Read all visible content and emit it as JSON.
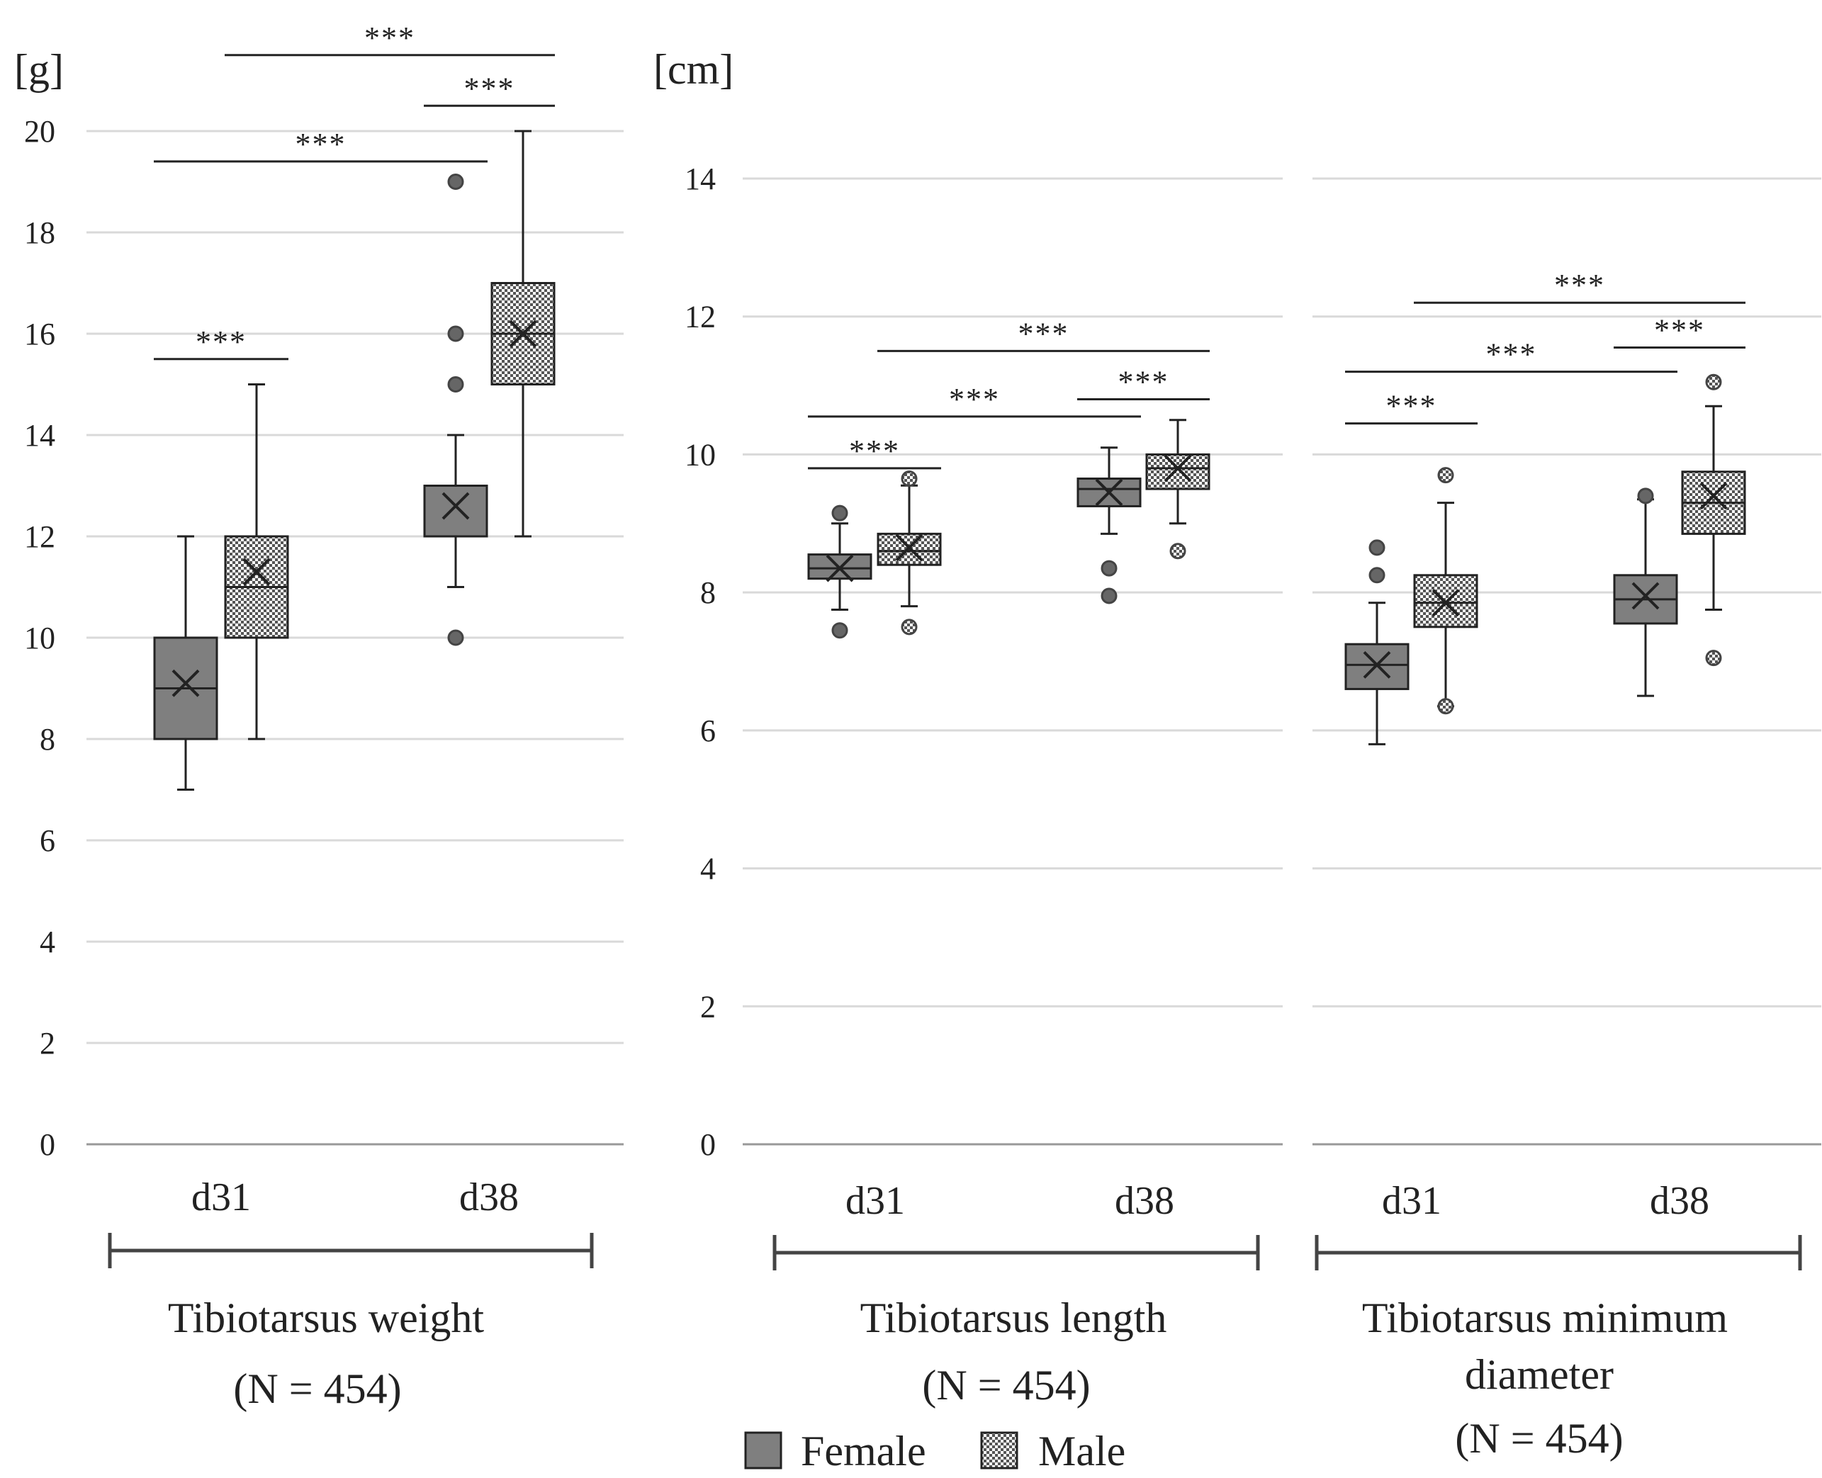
{
  "figure": {
    "legend": {
      "female_label": "Female",
      "male_label": "Male"
    },
    "colors": {
      "female_fill": "#7f7f7f",
      "male_pattern_dark": "#555555",
      "male_pattern_light": "#ffffff",
      "gridline": "#d9d9d9",
      "axis": "#999999",
      "ink": "#222222"
    }
  },
  "chart_data": [
    {
      "id": "weight",
      "type": "box",
      "unit_label": "[g]",
      "group_label_lines": [
        "Tibiotarsus weight",
        "(N = 454)"
      ],
      "ylim": [
        0,
        20
      ],
      "yticks": [
        0,
        2,
        4,
        6,
        8,
        10,
        12,
        14,
        16,
        18,
        20
      ],
      "categories": [
        "d31",
        "d38"
      ],
      "series": [
        {
          "name": "Female",
          "boxes": [
            {
              "category": "d31",
              "whisker_low": 7,
              "q1": 8,
              "median": 9,
              "q3": 10,
              "whisker_high": 12,
              "mean": 9.1,
              "outliers": []
            },
            {
              "category": "d38",
              "whisker_low": 11,
              "q1": 12,
              "median": 12,
              "q3": 13,
              "whisker_high": 14,
              "mean": 12.6,
              "outliers": [
                10,
                15,
                16,
                19
              ]
            }
          ]
        },
        {
          "name": "Male",
          "boxes": [
            {
              "category": "d31",
              "whisker_low": 8,
              "q1": 10,
              "median": 11,
              "q3": 12,
              "whisker_high": 15,
              "mean": 11.3,
              "outliers": []
            },
            {
              "category": "d38",
              "whisker_low": 12,
              "q1": 15,
              "median": 16,
              "q3": 17,
              "whisker_high": 20,
              "mean": 16.0,
              "outliers": []
            }
          ]
        }
      ],
      "significance": [
        {
          "from": "d31-Female",
          "to": "d31-Male",
          "label": "***",
          "y": 15.5
        },
        {
          "from": "d31-Female",
          "to": "d38-Female",
          "label": "***",
          "y": 19.4
        },
        {
          "from": "d38-Female",
          "to": "d38-Male",
          "label": "***",
          "y": 20.5
        },
        {
          "from": "d31-Male",
          "to": "d38-Male",
          "label": "***",
          "y": 21.5
        }
      ]
    },
    {
      "id": "length",
      "type": "box",
      "unit_label": "[cm]",
      "group_label_lines": [
        "Tibiotarsus length",
        "(N = 454)"
      ],
      "ylim": [
        0,
        14
      ],
      "yticks": [
        0,
        2,
        4,
        6,
        8,
        10,
        12,
        14
      ],
      "categories": [
        "d31",
        "d38"
      ],
      "series": [
        {
          "name": "Female",
          "boxes": [
            {
              "category": "d31",
              "whisker_low": 7.75,
              "q1": 8.2,
              "median": 8.35,
              "q3": 8.55,
              "whisker_high": 9.0,
              "mean": 8.35,
              "outliers": [
                7.45,
                9.15
              ]
            },
            {
              "category": "d38",
              "whisker_low": 8.85,
              "q1": 9.25,
              "median": 9.5,
              "q3": 9.65,
              "whisker_high": 10.1,
              "mean": 9.45,
              "outliers": [
                7.95,
                8.35
              ]
            }
          ]
        },
        {
          "name": "Male",
          "boxes": [
            {
              "category": "d31",
              "whisker_low": 7.8,
              "q1": 8.4,
              "median": 8.6,
              "q3": 8.85,
              "whisker_high": 9.55,
              "mean": 8.65,
              "outliers": [
                7.5,
                9.65
              ]
            },
            {
              "category": "d38",
              "whisker_low": 9.0,
              "q1": 9.5,
              "median": 9.8,
              "q3": 10.0,
              "whisker_high": 10.5,
              "mean": 9.8,
              "outliers": [
                8.6
              ]
            }
          ]
        }
      ],
      "significance": [
        {
          "from": "d31-Female",
          "to": "d31-Male",
          "label": "***",
          "y": 9.8
        },
        {
          "from": "d31-Female",
          "to": "d38-Female",
          "label": "***",
          "y": 10.55
        },
        {
          "from": "d38-Female",
          "to": "d38-Male",
          "label": "***",
          "y": 10.8
        },
        {
          "from": "d31-Male",
          "to": "d38-Male",
          "label": "***",
          "y": 11.5
        }
      ]
    },
    {
      "id": "diameter",
      "type": "box",
      "unit_label": "",
      "group_label_lines": [
        "Tibiotarsus minimum",
        "diameter",
        "(N = 454)"
      ],
      "ylim": [
        0,
        14
      ],
      "yticks": [
        0,
        2,
        4,
        6,
        8,
        10,
        12,
        14
      ],
      "categories": [
        "d31",
        "d38"
      ],
      "series": [
        {
          "name": "Female",
          "boxes": [
            {
              "category": "d31",
              "whisker_low": 5.8,
              "q1": 6.6,
              "median": 6.95,
              "q3": 7.25,
              "whisker_high": 7.85,
              "mean": 6.95,
              "outliers": [
                8.25,
                8.65
              ]
            },
            {
              "category": "d38",
              "whisker_low": 6.5,
              "q1": 7.55,
              "median": 7.9,
              "q3": 8.25,
              "whisker_high": 9.35,
              "mean": 7.95,
              "outliers": [
                9.4
              ]
            }
          ]
        },
        {
          "name": "Male",
          "boxes": [
            {
              "category": "d31",
              "whisker_low": 6.35,
              "q1": 7.5,
              "median": 7.85,
              "q3": 8.25,
              "whisker_high": 9.3,
              "mean": 7.85,
              "outliers": [
                6.35,
                9.7
              ]
            },
            {
              "category": "d38",
              "whisker_low": 7.75,
              "q1": 8.85,
              "median": 9.3,
              "q3": 9.75,
              "whisker_high": 10.7,
              "mean": 9.4,
              "outliers": [
                7.05,
                11.05
              ]
            }
          ]
        }
      ],
      "significance": [
        {
          "from": "d31-Female",
          "to": "d31-Male",
          "label": "***",
          "y": 10.45
        },
        {
          "from": "d31-Female",
          "to": "d38-Female",
          "label": "***",
          "y": 11.2
        },
        {
          "from": "d38-Female",
          "to": "d38-Male",
          "label": "***",
          "y": 11.55
        },
        {
          "from": "d31-Male",
          "to": "d38-Male",
          "label": "***",
          "y": 12.2
        }
      ]
    }
  ]
}
